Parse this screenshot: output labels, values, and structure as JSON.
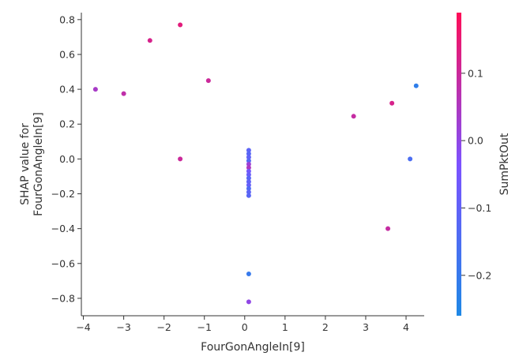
{
  "chart_data": {
    "type": "scatter",
    "xlabel": "FourGonAngleIn[9]",
    "ylabel_lines": [
      "SHAP value for",
      "FourGonAngleIn[9]"
    ],
    "xlim": [
      -4.05,
      4.45
    ],
    "ylim": [
      -0.9,
      0.84
    ],
    "xticks": [
      -4,
      -3,
      -2,
      -1,
      0,
      1,
      2,
      3,
      4
    ],
    "xtick_labels": [
      "−4",
      "−3",
      "−2",
      "−1",
      "0",
      "1",
      "2",
      "3",
      "4"
    ],
    "yticks": [
      0.8,
      0.6,
      0.4,
      0.2,
      0.0,
      -0.2,
      -0.4,
      -0.6,
      -0.8
    ],
    "ytick_labels": [
      "0.8",
      "0.6",
      "0.4",
      "0.2",
      "0.0",
      "−0.2",
      "−0.4",
      "−0.6",
      "−0.8"
    ],
    "grid": false,
    "colorbar": {
      "label": "SumPktOut",
      "range": [
        -0.26,
        0.19
      ],
      "ticks": [
        0.1,
        0.0,
        -0.1,
        -0.2
      ],
      "tick_labels": [
        "0.1",
        "0.0",
        "−0.1",
        "−0.2"
      ],
      "color_low": "#1e88e5",
      "color_high": "#ff0d57"
    },
    "points": [
      {
        "x": -3.7,
        "y": 0.4,
        "c": 0.04
      },
      {
        "x": -3.0,
        "y": 0.375,
        "c": 0.08
      },
      {
        "x": -2.35,
        "y": 0.68,
        "c": 0.12
      },
      {
        "x": -1.6,
        "y": 0.77,
        "c": 0.14
      },
      {
        "x": -1.6,
        "y": 0.0,
        "c": 0.1
      },
      {
        "x": -0.9,
        "y": 0.45,
        "c": 0.1
      },
      {
        "x": 2.7,
        "y": 0.245,
        "c": 0.09
      },
      {
        "x": 3.55,
        "y": -0.4,
        "c": 0.09
      },
      {
        "x": 3.65,
        "y": 0.32,
        "c": 0.12
      },
      {
        "x": 4.1,
        "y": 0.0,
        "c": -0.15
      },
      {
        "x": 4.25,
        "y": 0.42,
        "c": -0.22
      },
      {
        "x": 0.1,
        "y": -0.82,
        "c": 0.0
      },
      {
        "x": 0.1,
        "y": -0.66,
        "c": -0.2
      },
      {
        "x": 0.1,
        "y": 0.05,
        "c": -0.11
      },
      {
        "x": 0.1,
        "y": 0.03,
        "c": -0.12
      },
      {
        "x": 0.1,
        "y": 0.01,
        "c": -0.1
      },
      {
        "x": 0.1,
        "y": -0.01,
        "c": -0.13
      },
      {
        "x": 0.1,
        "y": -0.03,
        "c": 0.02
      },
      {
        "x": 0.1,
        "y": -0.05,
        "c": 0.05
      },
      {
        "x": 0.1,
        "y": -0.07,
        "c": -0.06
      },
      {
        "x": 0.1,
        "y": -0.09,
        "c": -0.08
      },
      {
        "x": 0.1,
        "y": -0.11,
        "c": -0.12
      },
      {
        "x": 0.1,
        "y": -0.13,
        "c": -0.1
      },
      {
        "x": 0.1,
        "y": -0.15,
        "c": -0.09
      },
      {
        "x": 0.1,
        "y": -0.17,
        "c": -0.14
      },
      {
        "x": 0.1,
        "y": -0.19,
        "c": -0.11
      },
      {
        "x": 0.1,
        "y": -0.21,
        "c": -0.12
      }
    ]
  }
}
